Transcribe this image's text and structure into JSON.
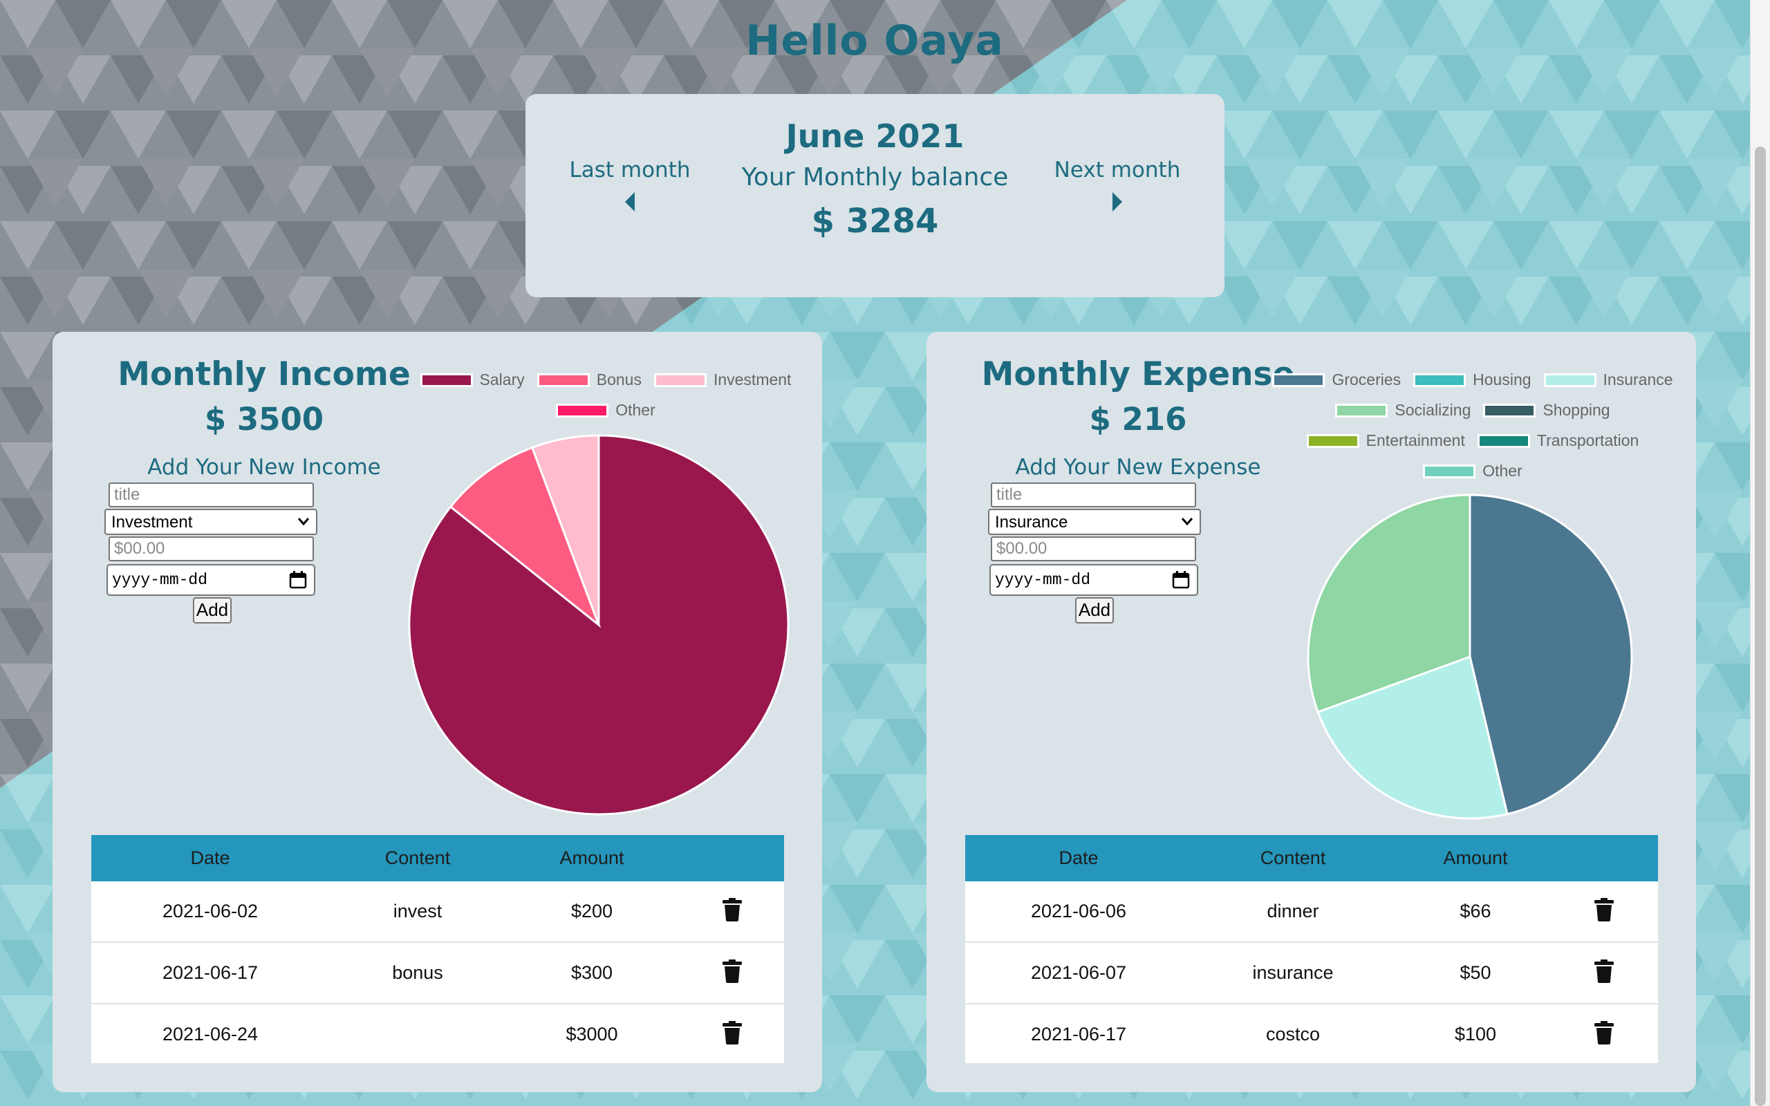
{
  "greeting": "Hello Oaya",
  "month_nav": {
    "month": "June 2021",
    "balance_label": "Your Monthly balance",
    "balance": "$ 3284",
    "prev_label": "Last month",
    "next_label": "Next month"
  },
  "income": {
    "title": "Monthly Income",
    "total": "$ 3500",
    "form": {
      "heading": "Add Your New Income",
      "title_placeholder": "title",
      "category_selected": "Investment",
      "amount_placeholder": "$00.00",
      "date_placeholder": "yyyy-mm-dd",
      "add_label": "Add"
    },
    "legend": [
      {
        "label": "Salary",
        "color": "#99174d"
      },
      {
        "label": "Bonus",
        "color": "#fc5c81"
      },
      {
        "label": "Investment",
        "color": "#ffbccd"
      },
      {
        "label": "Other",
        "color": "#ff1a66"
      }
    ],
    "pie": [
      {
        "label": "Salary",
        "value": 3000,
        "color": "#99174d"
      },
      {
        "label": "Bonus",
        "value": 300,
        "color": "#fc5c81"
      },
      {
        "label": "Investment",
        "value": 200,
        "color": "#ffbccd"
      }
    ],
    "table": {
      "headers": [
        "Date",
        "Content",
        "Amount"
      ],
      "rows": [
        {
          "date": "2021-06-02",
          "content": "invest",
          "amount": "$200"
        },
        {
          "date": "2021-06-17",
          "content": "bonus",
          "amount": "$300"
        },
        {
          "date": "2021-06-24",
          "content": "",
          "amount": "$3000"
        }
      ]
    }
  },
  "expense": {
    "title": "Monthly Expense",
    "total": "$ 216",
    "form": {
      "heading": "Add Your New Expense",
      "title_placeholder": "title",
      "category_selected": "Insurance",
      "amount_placeholder": "$00.00",
      "date_placeholder": "yyyy-mm-dd",
      "add_label": "Add"
    },
    "legend": [
      {
        "label": "Groceries",
        "color": "#4b7791"
      },
      {
        "label": "Housing",
        "color": "#3cbcbc"
      },
      {
        "label": "Insurance",
        "color": "#b3efe9"
      },
      {
        "label": "Socializing",
        "color": "#8ed6a4"
      },
      {
        "label": "Shopping",
        "color": "#375c63"
      },
      {
        "label": "Entertainment",
        "color": "#8cb227"
      },
      {
        "label": "Transportation",
        "color": "#16877c"
      },
      {
        "label": "Other",
        "color": "#6fd1bc"
      }
    ],
    "pie": [
      {
        "label": "Groceries",
        "value": 100,
        "color": "#4b7791"
      },
      {
        "label": "Insurance",
        "value": 50,
        "color": "#b3efe9"
      },
      {
        "label": "Socializing",
        "value": 66,
        "color": "#8ed6a4"
      }
    ],
    "table": {
      "headers": [
        "Date",
        "Content",
        "Amount"
      ],
      "rows": [
        {
          "date": "2021-06-06",
          "content": "dinner",
          "amount": "$66"
        },
        {
          "date": "2021-06-07",
          "content": "insurance",
          "amount": "$50"
        },
        {
          "date": "2021-06-17",
          "content": "costco",
          "amount": "$100"
        }
      ]
    }
  },
  "icons": {
    "prev": "caret-left-icon",
    "next": "caret-right-icon",
    "delete": "trash-icon",
    "select": "chevron-down-icon",
    "date": "calendar-icon"
  },
  "colors": {
    "accent": "#1d6b80",
    "table_header": "#2596bc",
    "card": "#dae3e8"
  }
}
